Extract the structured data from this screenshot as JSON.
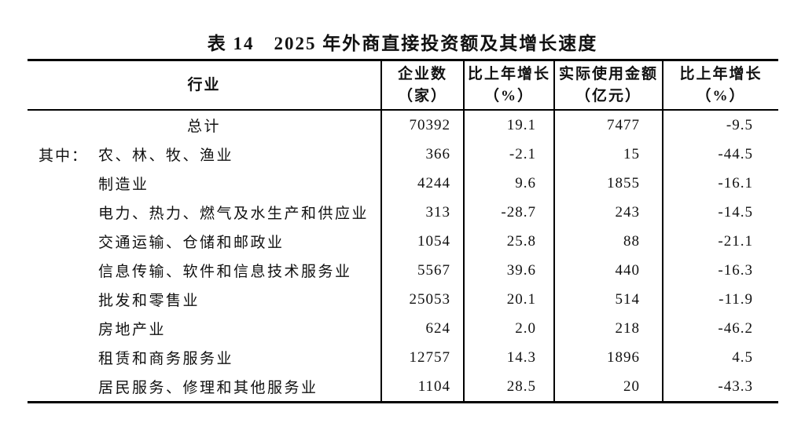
{
  "page": {
    "background_color": "#ffffff",
    "text_color": "#111111",
    "border_color": "#000000"
  },
  "table": {
    "title": "表 14　2025 年外商直接投资额及其增长速度",
    "columns": [
      {
        "line1": "行业",
        "line2": ""
      },
      {
        "line1": "企业数",
        "line2": "（家）"
      },
      {
        "line1": "比上年增长",
        "line2": "（%）"
      },
      {
        "line1": "实际使用金额",
        "line2": "（亿元）"
      },
      {
        "line1": "比上年增长",
        "line2": "（%）"
      }
    ],
    "rows": [
      {
        "style": "total",
        "prefix": "",
        "industry": "总计",
        "enterprises": "70392",
        "growth_enterprises": "19.1",
        "amount": "7477",
        "growth_amount": "-9.5"
      },
      {
        "style": "first",
        "prefix": "其中：",
        "industry": "农、林、牧、渔业",
        "enterprises": "366",
        "growth_enterprises": "-2.1",
        "amount": "15",
        "growth_amount": "-44.5"
      },
      {
        "style": "sub",
        "prefix": "",
        "industry": "制造业",
        "enterprises": "4244",
        "growth_enterprises": "9.6",
        "amount": "1855",
        "growth_amount": "-16.1"
      },
      {
        "style": "sub",
        "prefix": "",
        "industry": "电力、热力、燃气及水生产和供应业",
        "enterprises": "313",
        "growth_enterprises": "-28.7",
        "amount": "243",
        "growth_amount": "-14.5"
      },
      {
        "style": "sub",
        "prefix": "",
        "industry": "交通运输、仓储和邮政业",
        "enterprises": "1054",
        "growth_enterprises": "25.8",
        "amount": "88",
        "growth_amount": "-21.1"
      },
      {
        "style": "sub",
        "prefix": "",
        "industry": "信息传输、软件和信息技术服务业",
        "enterprises": "5567",
        "growth_enterprises": "39.6",
        "amount": "440",
        "growth_amount": "-16.3"
      },
      {
        "style": "sub",
        "prefix": "",
        "industry": "批发和零售业",
        "enterprises": "25053",
        "growth_enterprises": "20.1",
        "amount": "514",
        "growth_amount": "-11.9"
      },
      {
        "style": "sub",
        "prefix": "",
        "industry": "房地产业",
        "enterprises": "624",
        "growth_enterprises": "2.0",
        "amount": "218",
        "growth_amount": "-46.2"
      },
      {
        "style": "sub",
        "prefix": "",
        "industry": "租赁和商务服务业",
        "enterprises": "12757",
        "growth_enterprises": "14.3",
        "amount": "1896",
        "growth_amount": "4.5"
      },
      {
        "style": "sub",
        "prefix": "",
        "industry": "居民服务、修理和其他服务业",
        "enterprises": "1104",
        "growth_enterprises": "28.5",
        "amount": "20",
        "growth_amount": "-43.3"
      }
    ]
  }
}
